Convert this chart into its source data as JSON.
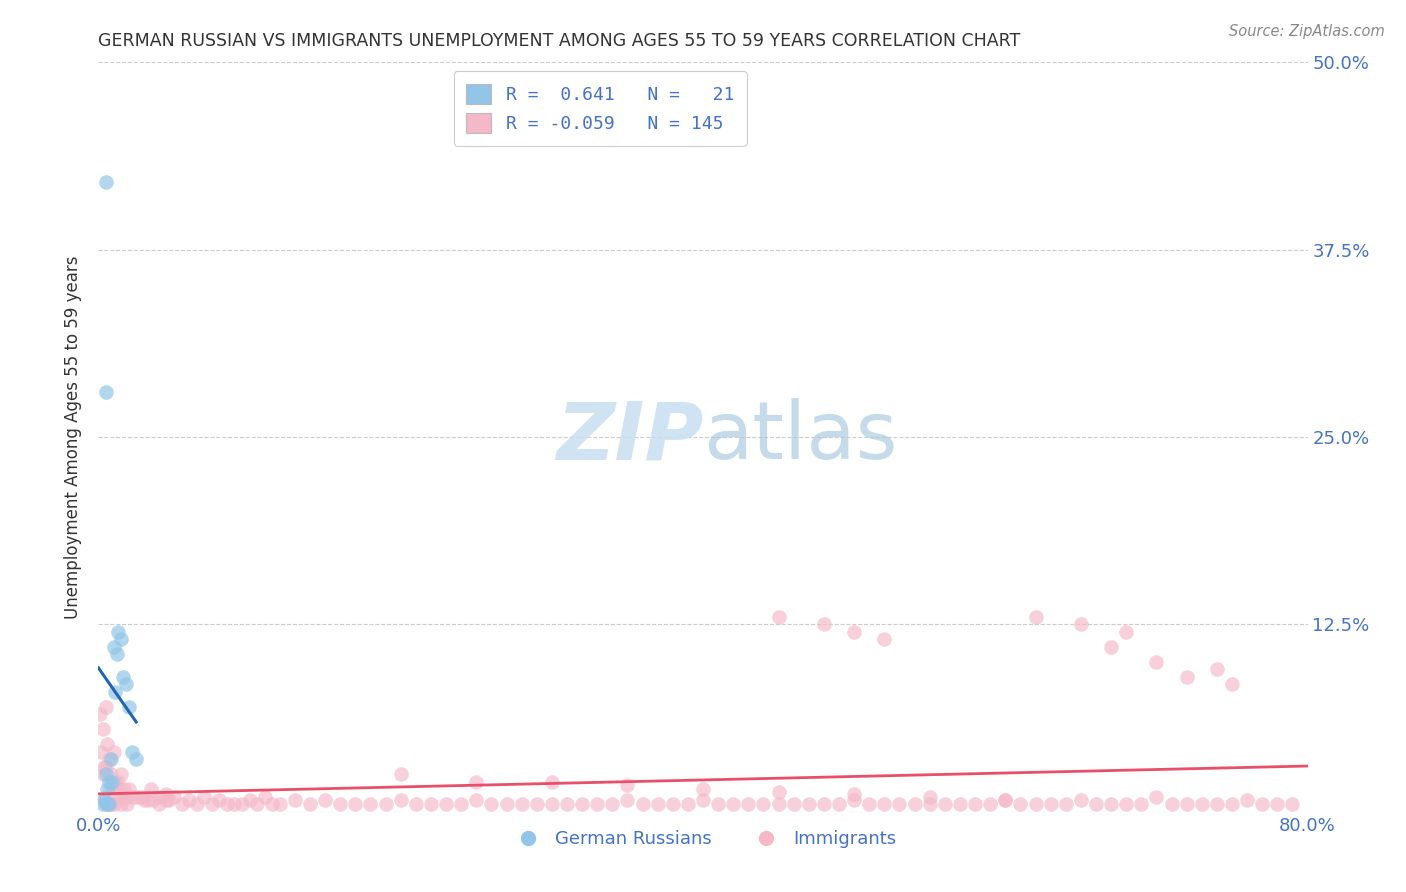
{
  "title": "GERMAN RUSSIAN VS IMMIGRANTS UNEMPLOYMENT AMONG AGES 55 TO 59 YEARS CORRELATION CHART",
  "source": "Source: ZipAtlas.com",
  "ylabel": "Unemployment Among Ages 55 to 59 years",
  "xlim": [
    0.0,
    0.8
  ],
  "ylim": [
    0.0,
    0.5
  ],
  "xticks": [
    0.0,
    0.2,
    0.4,
    0.6,
    0.8
  ],
  "xticklabels": [
    "0.0%",
    "",
    "",
    "",
    "80.0%"
  ],
  "yticks": [
    0.0,
    0.125,
    0.25,
    0.375,
    0.5
  ],
  "yticklabels": [
    "",
    "12.5%",
    "25.0%",
    "37.5%",
    "50.0%"
  ],
  "blue_color": "#92C5E8",
  "pink_color": "#F4B8C8",
  "blue_line_color": "#2166AC",
  "pink_line_color": "#E8506A",
  "blue_line_dash_color": "#7BAFD4",
  "watermark_color": "#C8DFF0",
  "gr_x": [
    0.003,
    0.004,
    0.005,
    0.005,
    0.006,
    0.006,
    0.007,
    0.007,
    0.008,
    0.009,
    0.01,
    0.011,
    0.012,
    0.013,
    0.015,
    0.016,
    0.018,
    0.02,
    0.022,
    0.025,
    0.005
  ],
  "gr_y": [
    0.005,
    0.008,
    0.42,
    0.025,
    0.015,
    0.005,
    0.02,
    0.005,
    0.035,
    0.02,
    0.11,
    0.08,
    0.105,
    0.12,
    0.115,
    0.09,
    0.085,
    0.07,
    0.04,
    0.035,
    0.28
  ],
  "imm_x": [
    0.001,
    0.002,
    0.003,
    0.003,
    0.004,
    0.004,
    0.005,
    0.005,
    0.005,
    0.006,
    0.006,
    0.007,
    0.007,
    0.008,
    0.008,
    0.009,
    0.01,
    0.01,
    0.01,
    0.011,
    0.012,
    0.013,
    0.014,
    0.015,
    0.015,
    0.016,
    0.017,
    0.018,
    0.019,
    0.02,
    0.022,
    0.025,
    0.028,
    0.03,
    0.033,
    0.036,
    0.04,
    0.045,
    0.05,
    0.055,
    0.06,
    0.065,
    0.07,
    0.075,
    0.08,
    0.085,
    0.09,
    0.095,
    0.1,
    0.105,
    0.11,
    0.115,
    0.12,
    0.13,
    0.14,
    0.15,
    0.16,
    0.17,
    0.18,
    0.19,
    0.2,
    0.21,
    0.22,
    0.23,
    0.24,
    0.25,
    0.26,
    0.27,
    0.28,
    0.29,
    0.3,
    0.31,
    0.32,
    0.33,
    0.34,
    0.35,
    0.36,
    0.37,
    0.38,
    0.39,
    0.4,
    0.41,
    0.42,
    0.43,
    0.44,
    0.45,
    0.46,
    0.47,
    0.48,
    0.49,
    0.5,
    0.51,
    0.52,
    0.53,
    0.54,
    0.55,
    0.56,
    0.57,
    0.58,
    0.59,
    0.6,
    0.61,
    0.62,
    0.63,
    0.64,
    0.65,
    0.66,
    0.67,
    0.68,
    0.69,
    0.7,
    0.71,
    0.72,
    0.73,
    0.74,
    0.75,
    0.76,
    0.77,
    0.78,
    0.79,
    0.035,
    0.04,
    0.045,
    0.047,
    0.45,
    0.48,
    0.5,
    0.52,
    0.62,
    0.65,
    0.67,
    0.68,
    0.7,
    0.72,
    0.74,
    0.75,
    0.2,
    0.25,
    0.3,
    0.35,
    0.4,
    0.45,
    0.5,
    0.55,
    0.6
  ],
  "imm_y": [
    0.065,
    0.04,
    0.055,
    0.025,
    0.03,
    0.008,
    0.07,
    0.03,
    0.005,
    0.045,
    0.01,
    0.035,
    0.005,
    0.025,
    0.005,
    0.015,
    0.04,
    0.015,
    0.005,
    0.02,
    0.015,
    0.02,
    0.01,
    0.025,
    0.005,
    0.01,
    0.015,
    0.01,
    0.005,
    0.015,
    0.01,
    0.01,
    0.01,
    0.008,
    0.008,
    0.008,
    0.005,
    0.008,
    0.01,
    0.005,
    0.008,
    0.005,
    0.01,
    0.005,
    0.008,
    0.005,
    0.005,
    0.005,
    0.008,
    0.005,
    0.01,
    0.005,
    0.005,
    0.008,
    0.005,
    0.008,
    0.005,
    0.005,
    0.005,
    0.005,
    0.008,
    0.005,
    0.005,
    0.005,
    0.005,
    0.008,
    0.005,
    0.005,
    0.005,
    0.005,
    0.005,
    0.005,
    0.005,
    0.005,
    0.005,
    0.008,
    0.005,
    0.005,
    0.005,
    0.005,
    0.008,
    0.005,
    0.005,
    0.005,
    0.005,
    0.005,
    0.005,
    0.005,
    0.005,
    0.005,
    0.008,
    0.005,
    0.005,
    0.005,
    0.005,
    0.005,
    0.005,
    0.005,
    0.005,
    0.005,
    0.008,
    0.005,
    0.005,
    0.005,
    0.005,
    0.008,
    0.005,
    0.005,
    0.005,
    0.005,
    0.01,
    0.005,
    0.005,
    0.005,
    0.005,
    0.005,
    0.008,
    0.005,
    0.005,
    0.005,
    0.015,
    0.01,
    0.012,
    0.008,
    0.13,
    0.125,
    0.12,
    0.115,
    0.13,
    0.125,
    0.11,
    0.12,
    0.1,
    0.09,
    0.095,
    0.085,
    0.025,
    0.02,
    0.02,
    0.018,
    0.015,
    0.013,
    0.012,
    0.01,
    0.008
  ]
}
